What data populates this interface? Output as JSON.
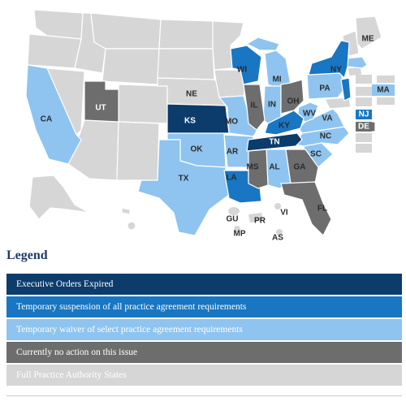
{
  "colors": {
    "expired": "#0c3c6b",
    "suspension": "#1876c2",
    "waiver": "#8ec4ef",
    "no_action": "#6d6d6d",
    "full_practice": "#d6d6d6"
  },
  "legend": {
    "title": "Legend",
    "items": [
      {
        "label": "Executive Orders Expired",
        "color": "#0c3c6b"
      },
      {
        "label": "Temporary suspension of all practice agreement requirements",
        "color": "#1876c2"
      },
      {
        "label": "Temporary waiver of select practice agreement requirements",
        "color": "#8ec4ef"
      },
      {
        "label": "Currently no action on this issue",
        "color": "#6d6d6d"
      },
      {
        "label": "Full Practice Authority States",
        "color": "#d6d6d6"
      }
    ]
  },
  "labels": {
    "ME": "ME",
    "CA": "CA",
    "UT": "UT",
    "NE": "NE",
    "KS": "KS",
    "OK": "OK",
    "TX": "TX",
    "MO": "MO",
    "AR": "AR",
    "LA": "LA",
    "WI": "WI",
    "MI": "MI",
    "IL": "IL",
    "IN": "IN",
    "OH": "OH",
    "KY": "KY",
    "TN": "TN",
    "MS": "MS",
    "AL": "AL",
    "GA": "GA",
    "FL": "FL",
    "SC": "SC",
    "NC": "NC",
    "VA": "VA",
    "WV": "WV",
    "PA": "PA",
    "NY": "NY",
    "NJ": "NJ",
    "DE": "DE",
    "MA": "MA",
    "GU": "GU",
    "PR": "PR",
    "VI": "VI",
    "MP": "MP",
    "AS": "AS"
  }
}
